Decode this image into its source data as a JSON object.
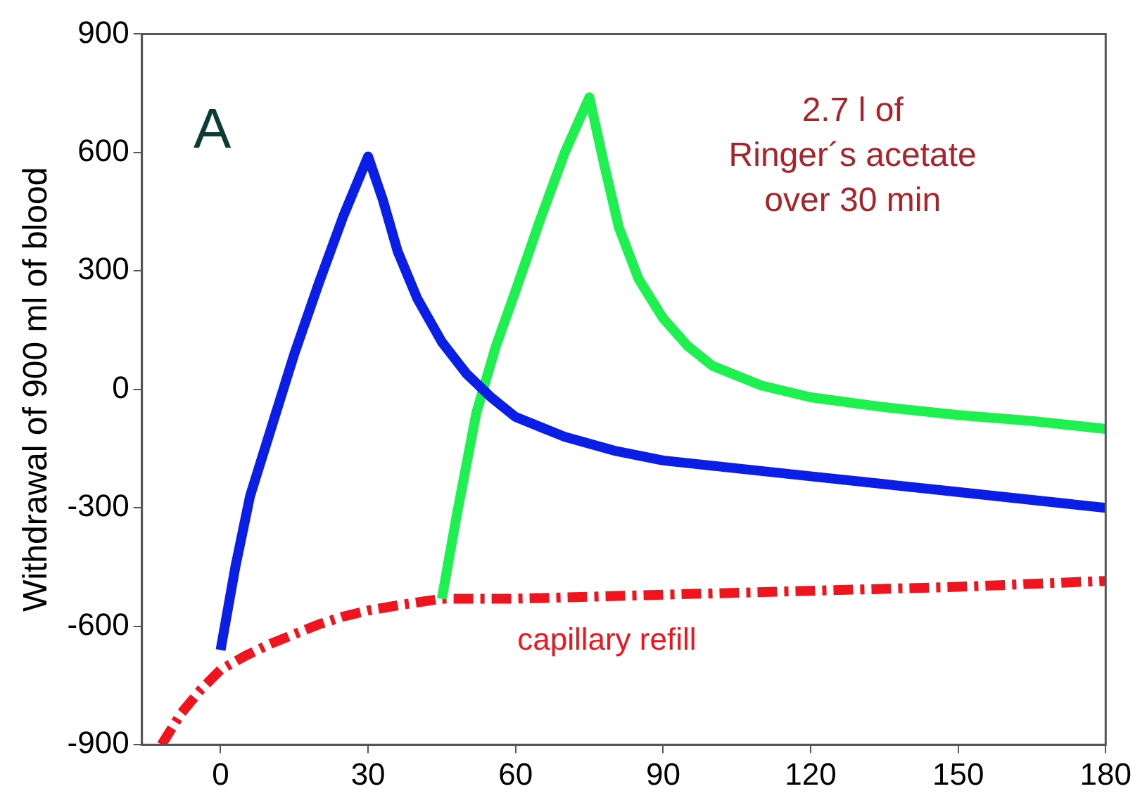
{
  "chart_data": {
    "type": "line",
    "ylabel": "Withdrawal of 900 ml of blood",
    "xlim": [
      -16,
      180
    ],
    "xticks": [
      0,
      30,
      60,
      90,
      120,
      150,
      180
    ],
    "ylim": [
      -900,
      900
    ],
    "yticks": [
      -900,
      -600,
      -300,
      0,
      300,
      600,
      900
    ],
    "grid": false,
    "legend": false,
    "marker": "none",
    "annotations": [
      "A",
      "2.7 l of\nRinger´s acetate\nover 30 min"
    ],
    "series": [
      {
        "color": "#0a1ee6",
        "x": [
          0,
          3,
          6,
          10,
          15,
          20,
          25,
          30,
          33,
          36,
          40,
          45,
          50,
          55,
          60,
          70,
          80,
          90,
          105,
          120,
          135,
          150,
          165,
          180
        ],
        "values": [
          -660,
          -450,
          -270,
          -110,
          90,
          270,
          440,
          590,
          480,
          350,
          230,
          120,
          40,
          -20,
          -70,
          -120,
          -155,
          -180,
          -200,
          -220,
          -240,
          -260,
          -280,
          -300
        ]
      },
      {
        "color": "#1ef050",
        "x": [
          45,
          48,
          52,
          56,
          60,
          65,
          70,
          75,
          78,
          81,
          85,
          90,
          95,
          100,
          110,
          120,
          135,
          150,
          165,
          180
        ],
        "values": [
          -530,
          -320,
          -60,
          110,
          250,
          430,
          600,
          740,
          570,
          410,
          280,
          180,
          110,
          60,
          10,
          -20,
          -45,
          -65,
          -80,
          -100
        ]
      },
      {
        "name": "capillary refill",
        "color": "#f0141e",
        "line_style": "dashed",
        "x": [
          -12,
          -8,
          -4,
          0,
          5,
          10,
          15,
          20,
          25,
          30,
          37,
          45,
          60,
          90,
          120,
          150,
          180
        ],
        "values": [
          -900,
          -820,
          -760,
          -710,
          -675,
          -645,
          -620,
          -595,
          -575,
          -560,
          -545,
          -530,
          -530,
          -520,
          -510,
          -500,
          -485
        ]
      }
    ]
  }
}
